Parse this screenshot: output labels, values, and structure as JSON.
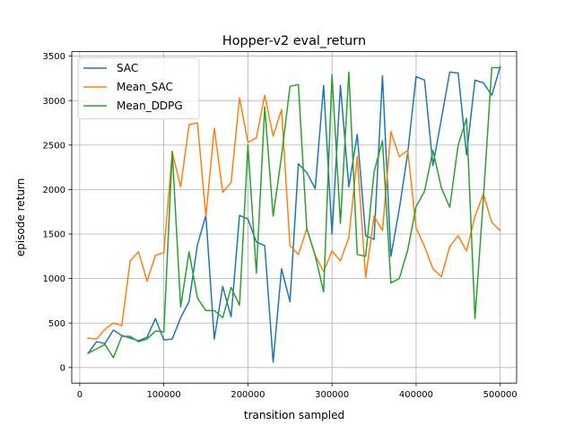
{
  "chart_data": {
    "type": "line",
    "title": "Hopper-v2 eval_return",
    "xlabel": "transition sampled",
    "ylabel": "episode return",
    "xlim": [
      -9500,
      519500
    ],
    "ylim": [
      -175,
      3550
    ],
    "xticks": [
      0,
      100000,
      200000,
      300000,
      400000,
      500000
    ],
    "xtick_labels": [
      "0",
      "100000",
      "200000",
      "300000",
      "400000",
      "500000"
    ],
    "yticks": [
      0,
      500,
      1000,
      1500,
      2000,
      2500,
      3000,
      3500
    ],
    "ytick_labels": [
      "0",
      "500",
      "1000",
      "1500",
      "2000",
      "2500",
      "3000",
      "3500"
    ],
    "grid": true,
    "legend_position": "upper-left",
    "x": [
      10000,
      20000,
      30000,
      40000,
      50000,
      60000,
      70000,
      80000,
      90000,
      100000,
      110000,
      120000,
      130000,
      140000,
      150000,
      160000,
      170000,
      180000,
      190000,
      200000,
      210000,
      220000,
      230000,
      240000,
      250000,
      260000,
      270000,
      280000,
      290000,
      300000,
      310000,
      320000,
      330000,
      340000,
      350000,
      360000,
      370000,
      380000,
      390000,
      400000,
      410000,
      420000,
      430000,
      440000,
      450000,
      460000,
      470000,
      480000,
      490000,
      500000
    ],
    "series": [
      {
        "name": "SAC",
        "color": "#1f77b4",
        "values": [
          160,
          290,
          270,
          420,
          360,
          330,
          300,
          340,
          550,
          310,
          320,
          560,
          740,
          1380,
          1710,
          320,
          910,
          570,
          1710,
          1670,
          1410,
          1370,
          60,
          1110,
          740,
          2290,
          2190,
          2010,
          3170,
          1500,
          3170,
          2030,
          2620,
          1480,
          1440,
          3280,
          1250,
          1780,
          2410,
          3270,
          3230,
          2270,
          2790,
          3320,
          3310,
          2390,
          3230,
          3200,
          3060,
          3380
        ]
      },
      {
        "name": "Mean_SAC",
        "color": "#ff7f0e",
        "values": [
          330,
          320,
          430,
          500,
          470,
          1200,
          1300,
          970,
          1260,
          1290,
          2420,
          2030,
          2730,
          2750,
          1700,
          2690,
          1970,
          2080,
          3030,
          2530,
          2580,
          3060,
          2600,
          2900,
          1370,
          1270,
          1560,
          1260,
          1080,
          1310,
          1200,
          1460,
          2370,
          1010,
          1700,
          1540,
          2650,
          2370,
          2440,
          1570,
          1360,
          1110,
          1020,
          1360,
          1480,
          1310,
          1700,
          1950,
          1630,
          1540
        ]
      },
      {
        "name": "Mean_DDPG",
        "color": "#2ca02c",
        "values": [
          160,
          210,
          260,
          110,
          350,
          350,
          290,
          320,
          410,
          400,
          2430,
          680,
          1300,
          780,
          640,
          640,
          560,
          900,
          700,
          2500,
          1060,
          2930,
          1700,
          2380,
          3160,
          3180,
          1560,
          1260,
          850,
          3290,
          1620,
          3320,
          1270,
          1250,
          2200,
          2550,
          950,
          1000,
          1320,
          1810,
          1980,
          2440,
          2020,
          1800,
          2500,
          2800,
          550,
          1900,
          3370,
          3370
        ]
      }
    ]
  }
}
